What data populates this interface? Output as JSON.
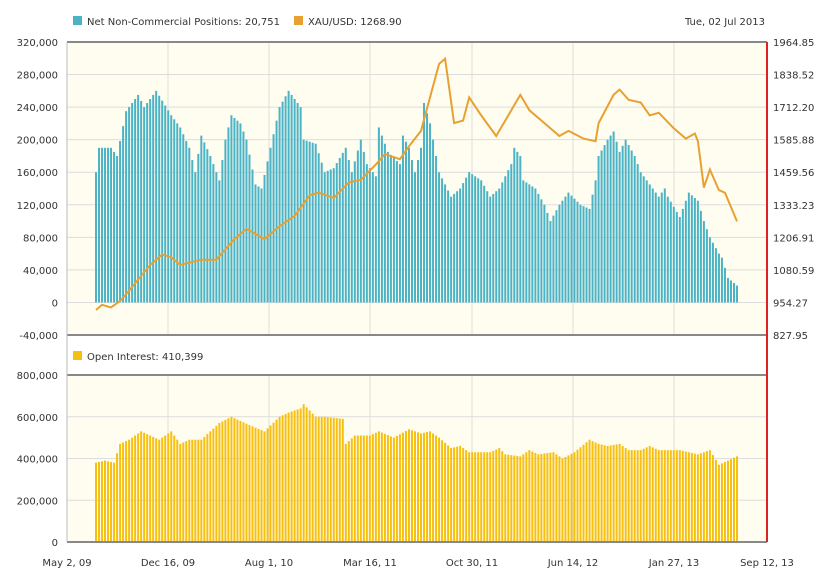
{
  "chart_data": [
    {
      "type": "bar+line",
      "date": "Tue, 02 Jul 2013",
      "x_axis": {
        "unit": "weeks since 2009-07-07",
        "range_weeks": [
          0,
          213
        ]
      },
      "series": [
        {
          "name": "Net Non-Commercial Positions",
          "legend": "Net Non-Commercial Positions: 20,751",
          "type": "bar",
          "color": "#4bb3c6",
          "axis": "left",
          "points": [
            [
              0,
              160000
            ],
            [
              1,
              190000
            ],
            [
              5,
              190000
            ],
            [
              7,
              180000
            ],
            [
              10,
              235000
            ],
            [
              14,
              255000
            ],
            [
              16,
              240000
            ],
            [
              20,
              260000
            ],
            [
              25,
              230000
            ],
            [
              28,
              215000
            ],
            [
              31,
              190000
            ],
            [
              33,
              160000
            ],
            [
              35,
              205000
            ],
            [
              38,
              180000
            ],
            [
              41,
              150000
            ],
            [
              43,
              200000
            ],
            [
              45,
              230000
            ],
            [
              48,
              220000
            ],
            [
              50,
              200000
            ],
            [
              53,
              145000
            ],
            [
              55,
              140000
            ],
            [
              58,
              190000
            ],
            [
              61,
              240000
            ],
            [
              64,
              260000
            ],
            [
              68,
              240000
            ],
            [
              69,
              200000
            ],
            [
              73,
              195000
            ],
            [
              76,
              160000
            ],
            [
              79,
              165000
            ],
            [
              83,
              190000
            ],
            [
              85,
              160000
            ],
            [
              88,
              200000
            ],
            [
              90,
              170000
            ],
            [
              93,
              155000
            ],
            [
              94,
              215000
            ],
            [
              97,
              185000
            ],
            [
              101,
              170000
            ],
            [
              102,
              205000
            ],
            [
              104,
              190000
            ],
            [
              106,
              160000
            ],
            [
              108,
              190000
            ],
            [
              109,
              245000
            ],
            [
              111,
              220000
            ],
            [
              114,
              160000
            ],
            [
              118,
              130000
            ],
            [
              121,
              140000
            ],
            [
              124,
              160000
            ],
            [
              128,
              150000
            ],
            [
              131,
              130000
            ],
            [
              134,
              140000
            ],
            [
              138,
              170000
            ],
            [
              139,
              190000
            ],
            [
              141,
              180000
            ],
            [
              142,
              150000
            ],
            [
              146,
              140000
            ],
            [
              149,
              120000
            ],
            [
              151,
              100000
            ],
            [
              154,
              120000
            ],
            [
              157,
              135000
            ],
            [
              161,
              120000
            ],
            [
              164,
              115000
            ],
            [
              166,
              150000
            ],
            [
              167,
              180000
            ],
            [
              170,
              200000
            ],
            [
              172,
              210000
            ],
            [
              174,
              185000
            ],
            [
              176,
              200000
            ],
            [
              179,
              180000
            ],
            [
              181,
              160000
            ],
            [
              184,
              145000
            ],
            [
              187,
              130000
            ],
            [
              189,
              140000
            ],
            [
              190,
              130000
            ],
            [
              194,
              105000
            ],
            [
              197,
              135000
            ],
            [
              200,
              125000
            ],
            [
              202,
              100000
            ],
            [
              204,
              80000
            ],
            [
              207,
              60000
            ],
            [
              208,
              55000
            ],
            [
              210,
              30000
            ],
            [
              213,
              20751
            ]
          ]
        },
        {
          "name": "XAU/USD",
          "legend": "XAU/USD: 1268.90",
          "type": "line",
          "color": "#e8a030",
          "axis": "right",
          "points": [
            [
              0,
              925
            ],
            [
              2,
              945
            ],
            [
              5,
              935
            ],
            [
              8,
              960
            ],
            [
              11,
              1000
            ],
            [
              18,
              1100
            ],
            [
              22,
              1140
            ],
            [
              25,
              1130
            ],
            [
              28,
              1100
            ],
            [
              35,
              1120
            ],
            [
              40,
              1120
            ],
            [
              46,
              1200
            ],
            [
              50,
              1240
            ],
            [
              56,
              1200
            ],
            [
              61,
              1250
            ],
            [
              66,
              1290
            ],
            [
              71,
              1370
            ],
            [
              74,
              1380
            ],
            [
              79,
              1360
            ],
            [
              84,
              1420
            ],
            [
              88,
              1430
            ],
            [
              93,
              1490
            ],
            [
              96,
              1530
            ],
            [
              101,
              1510
            ],
            [
              104,
              1560
            ],
            [
              108,
              1620
            ],
            [
              111,
              1750
            ],
            [
              114,
              1880
            ],
            [
              116,
              1900
            ],
            [
              119,
              1650
            ],
            [
              122,
              1660
            ],
            [
              124,
              1750
            ],
            [
              128,
              1680
            ],
            [
              133,
              1600
            ],
            [
              138,
              1700
            ],
            [
              141,
              1760
            ],
            [
              144,
              1700
            ],
            [
              149,
              1650
            ],
            [
              154,
              1600
            ],
            [
              157,
              1620
            ],
            [
              162,
              1590
            ],
            [
              166,
              1580
            ],
            [
              167,
              1650
            ],
            [
              172,
              1760
            ],
            [
              174,
              1780
            ],
            [
              177,
              1740
            ],
            [
              181,
              1730
            ],
            [
              184,
              1680
            ],
            [
              187,
              1690
            ],
            [
              192,
              1630
            ],
            [
              196,
              1590
            ],
            [
              199,
              1610
            ],
            [
              200,
              1580
            ],
            [
              202,
              1400
            ],
            [
              204,
              1470
            ],
            [
              207,
              1390
            ],
            [
              209,
              1380
            ],
            [
              213,
              1268.9
            ]
          ]
        },
        {
          "name": "Open Interest",
          "legend": "Open Interest: 410,399",
          "type": "bar",
          "color": "#f7c010",
          "axis": "lower",
          "points": [
            [
              0,
              380000
            ],
            [
              3,
              390000
            ],
            [
              6,
              380000
            ],
            [
              8,
              470000
            ],
            [
              11,
              490000
            ],
            [
              15,
              530000
            ],
            [
              18,
              510000
            ],
            [
              21,
              490000
            ],
            [
              25,
              530000
            ],
            [
              28,
              470000
            ],
            [
              31,
              490000
            ],
            [
              35,
              490000
            ],
            [
              38,
              530000
            ],
            [
              41,
              570000
            ],
            [
              45,
              600000
            ],
            [
              48,
              580000
            ],
            [
              51,
              560000
            ],
            [
              56,
              530000
            ],
            [
              61,
              600000
            ],
            [
              64,
              620000
            ],
            [
              68,
              640000
            ],
            [
              69,
              660000
            ],
            [
              73,
              600000
            ],
            [
              76,
              600000
            ],
            [
              82,
              590000
            ],
            [
              83,
              470000
            ],
            [
              86,
              510000
            ],
            [
              91,
              510000
            ],
            [
              94,
              530000
            ],
            [
              99,
              500000
            ],
            [
              104,
              540000
            ],
            [
              108,
              520000
            ],
            [
              111,
              530000
            ],
            [
              114,
              500000
            ],
            [
              118,
              450000
            ],
            [
              121,
              460000
            ],
            [
              124,
              430000
            ],
            [
              131,
              430000
            ],
            [
              134,
              450000
            ],
            [
              136,
              420000
            ],
            [
              141,
              410000
            ],
            [
              144,
              440000
            ],
            [
              147,
              420000
            ],
            [
              152,
              430000
            ],
            [
              155,
              400000
            ],
            [
              159,
              430000
            ],
            [
              164,
              490000
            ],
            [
              167,
              470000
            ],
            [
              170,
              460000
            ],
            [
              174,
              470000
            ],
            [
              177,
              440000
            ],
            [
              181,
              440000
            ],
            [
              184,
              460000
            ],
            [
              187,
              440000
            ],
            [
              194,
              440000
            ],
            [
              200,
              420000
            ],
            [
              204,
              440000
            ],
            [
              207,
              370000
            ],
            [
              210,
              390000
            ],
            [
              213,
              410399
            ]
          ]
        }
      ],
      "left_axis_upper": {
        "ticks": [
          "320,000",
          "280,000",
          "240,000",
          "200,000",
          "160,000",
          "120,000",
          "80,000",
          "40,000",
          "0",
          "-40,000"
        ],
        "range": [
          -40000,
          320000
        ]
      },
      "right_axis_upper": {
        "ticks": [
          "1964.85",
          "1838.52",
          "1712.20",
          "1585.88",
          "1459.56",
          "1333.23",
          "1206.91",
          "1080.59",
          "954.27",
          "827.95"
        ],
        "range": [
          827.95,
          1964.85
        ]
      },
      "left_axis_lower": {
        "ticks": [
          "800,000",
          "600,000",
          "400,000",
          "200,000",
          "0"
        ],
        "range": [
          0,
          800000
        ]
      },
      "x_ticks": [
        "May 2, 09",
        "Dec 16, 09",
        "Aug 1, 10",
        "Mar 16, 11",
        "Oct 30, 11",
        "Jun 14, 12",
        "Jan 27, 13",
        "Sep 12, 13"
      ],
      "grid": true
    }
  ]
}
